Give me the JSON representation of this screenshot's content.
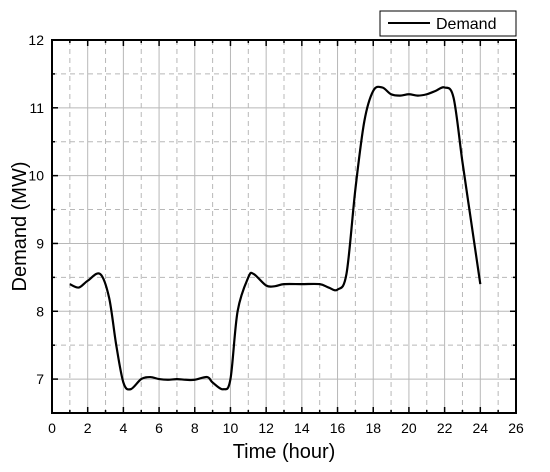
{
  "chart_data": {
    "type": "line",
    "xlabel": "Time (hour)",
    "ylabel": "Demand (MW)",
    "xlim": [
      0,
      26
    ],
    "ylim": [
      6.5,
      12
    ],
    "x_ticks": [
      0,
      2,
      4,
      6,
      8,
      10,
      12,
      14,
      16,
      18,
      20,
      22,
      24,
      26
    ],
    "y_ticks": [
      7,
      8,
      9,
      10,
      11,
      12
    ],
    "grid": true,
    "legend_position": "top-right",
    "series": [
      {
        "name": "Demand",
        "color": "#000000",
        "x": [
          1,
          1.5,
          2,
          2.7,
          3.2,
          3.6,
          4,
          4.4,
          5,
          5.5,
          6,
          6.5,
          7,
          7.5,
          8,
          8.7,
          9,
          9.6,
          10,
          10.4,
          11,
          11.3,
          12,
          12.5,
          13,
          14,
          15,
          15.5,
          16,
          16.5,
          17,
          17.5,
          18,
          18.5,
          19,
          19.5,
          20,
          20.5,
          21,
          21.5,
          22,
          22.5,
          23,
          23.5,
          24
        ],
        "y": [
          8.4,
          8.35,
          8.45,
          8.55,
          8.2,
          7.5,
          6.95,
          6.85,
          7.0,
          7.03,
          7.0,
          6.99,
          7.0,
          6.99,
          6.99,
          7.03,
          6.95,
          6.85,
          7.0,
          8.0,
          8.5,
          8.55,
          8.38,
          8.37,
          8.4,
          8.4,
          8.4,
          8.35,
          8.32,
          8.55,
          9.8,
          10.8,
          11.25,
          11.3,
          11.2,
          11.18,
          11.2,
          11.18,
          11.2,
          11.25,
          11.3,
          11.15,
          10.2,
          9.3,
          8.4
        ]
      }
    ]
  }
}
